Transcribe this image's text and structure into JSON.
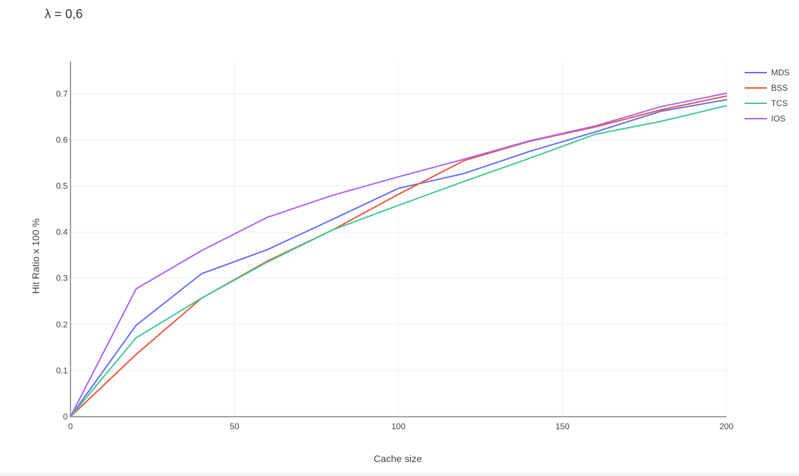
{
  "chart_data": {
    "type": "line",
    "title": "λ = 0,6",
    "xlabel": "Cache size",
    "ylabel": "Hit Ratio x 100 %",
    "xlim": [
      0,
      200
    ],
    "ylim": [
      0,
      0.77
    ],
    "x_ticks": [
      0,
      50,
      100,
      150,
      200
    ],
    "x_tick_labels": [
      "0",
      "50",
      "100",
      "150",
      "200"
    ],
    "y_ticks": [
      0,
      0.1,
      0.2,
      0.3,
      0.4,
      0.5,
      0.6,
      0.7
    ],
    "y_tick_labels": [
      "0",
      "0.1",
      "0.2",
      "0.3",
      "0.4",
      "0.5",
      "0.6",
      "0.7"
    ],
    "grid": true,
    "legend_position": "top-right",
    "x": [
      0,
      20,
      40,
      60,
      80,
      100,
      120,
      140,
      160,
      180,
      200
    ],
    "series": [
      {
        "name": "MDS",
        "color": "#636efa",
        "values": [
          0,
          0.198,
          0.31,
          0.362,
          0.428,
          0.495,
          0.527,
          0.575,
          0.617,
          0.662,
          0.687
        ]
      },
      {
        "name": "BSS",
        "color": "#ef553b",
        "values": [
          0,
          0.135,
          0.257,
          0.337,
          0.405,
          0.482,
          0.555,
          0.597,
          0.628,
          0.665,
          0.695
        ]
      },
      {
        "name": "TCS",
        "color": "#3fca93",
        "values": [
          0,
          0.171,
          0.257,
          0.335,
          0.405,
          0.458,
          0.51,
          0.56,
          0.612,
          0.64,
          0.674
        ]
      },
      {
        "name": "IOS",
        "color": "#ab63fa",
        "values": [
          0,
          0.277,
          0.36,
          0.432,
          0.48,
          0.52,
          0.558,
          0.598,
          0.63,
          0.672,
          0.701
        ]
      }
    ]
  }
}
